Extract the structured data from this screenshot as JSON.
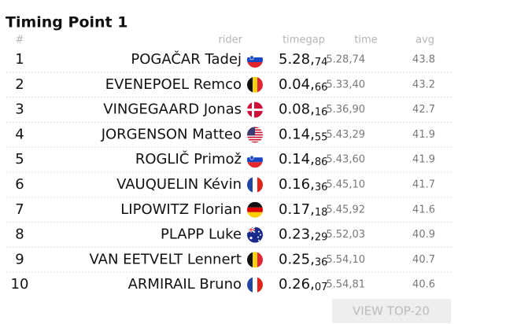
{
  "title": "Timing Point 1",
  "table": {
    "headers": [
      "#",
      "rider",
      "timegap",
      "time",
      "avg"
    ],
    "rows": [
      {
        "rank": "1",
        "rider": "POGAČAR Tadej",
        "gap_main": "5.28,",
        "gap_sub": "74",
        "time": "5.28,74",
        "avg": "43.8"
      },
      {
        "rank": "2",
        "rider": "EVENEPOEL Remco",
        "gap_main": "0.04,",
        "gap_sub": "66",
        "time": "5.33,40",
        "avg": "43.2"
      },
      {
        "rank": "3",
        "rider": "VINGEGAARD Jonas",
        "gap_main": "0.08,",
        "gap_sub": "16",
        "time": "5.36,90",
        "avg": "42.7"
      },
      {
        "rank": "4",
        "rider": "JORGENSON Matteo",
        "gap_main": "0.14,",
        "gap_sub": "55",
        "time": "5.43,29",
        "avg": "41.9"
      },
      {
        "rank": "5",
        "rider": "ROGLIČ Primož",
        "gap_main": "0.14,",
        "gap_sub": "86",
        "time": "5.43,60",
        "avg": "41.9"
      },
      {
        "rank": "6",
        "rider": "VAUQUELIN Kévin",
        "gap_main": "0.16,",
        "gap_sub": "36",
        "time": "5.45,10",
        "avg": "41.7"
      },
      {
        "rank": "7",
        "rider": "LIPOWITZ Florian",
        "gap_main": "0.17,",
        "gap_sub": "18",
        "time": "5.45,92",
        "avg": "41.6"
      },
      {
        "rank": "8",
        "rider": "PLAPP Luke",
        "gap_main": "0.23,",
        "gap_sub": "29",
        "time": "5.52,03",
        "avg": "40.9"
      },
      {
        "rank": "9",
        "rider": "VAN EETVELT Lennert",
        "gap_main": "0.25,",
        "gap_sub": "36",
        "time": "5.54,10",
        "avg": "40.7"
      },
      {
        "rank": "10",
        "rider": "ARMIRAIL Bruno",
        "gap_main": "0.26,",
        "gap_sub": "07",
        "time": "5.54,81",
        "avg": "40.6"
      }
    ]
  },
  "button": "VIEW TOP-20"
}
